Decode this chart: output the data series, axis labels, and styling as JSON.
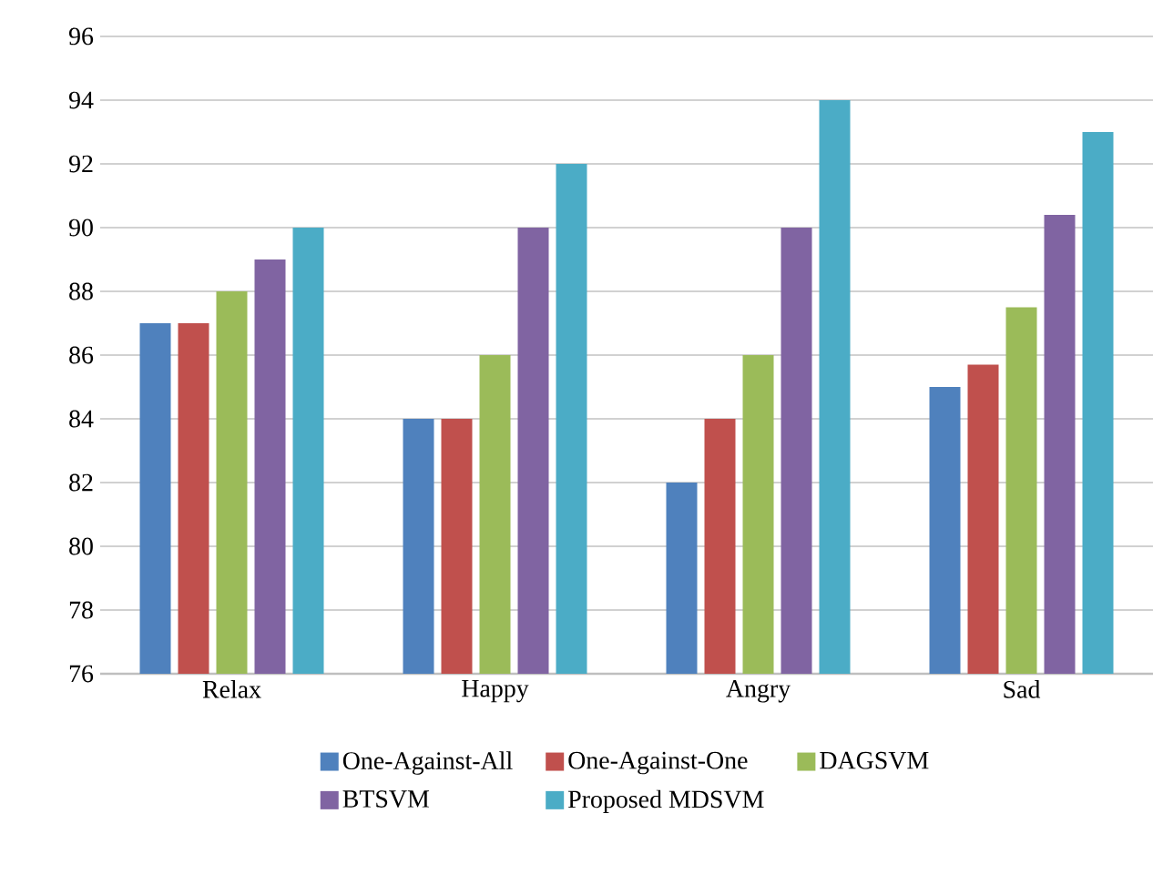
{
  "chart_data": {
    "type": "bar",
    "categories": [
      "Relax",
      "Happy",
      "Angry",
      "Sad"
    ],
    "series": [
      {
        "name": "One-Against-All",
        "color": "#4f81bd",
        "values": [
          87,
          84,
          82,
          85
        ]
      },
      {
        "name": "One-Against-One",
        "color": "#c0504d",
        "values": [
          87,
          84,
          84,
          85.7
        ]
      },
      {
        "name": "DAGSVM",
        "color": "#9bbb59",
        "values": [
          88,
          86,
          86,
          87.5
        ]
      },
      {
        "name": "BTSVM",
        "color": "#8064a2",
        "values": [
          89,
          90,
          90,
          90.4
        ]
      },
      {
        "name": "Proposed MDSVM",
        "color": "#4bacc6",
        "values": [
          90,
          92,
          94,
          93
        ]
      }
    ],
    "ylim": [
      76,
      96
    ],
    "yticks": [
      76,
      78,
      80,
      82,
      84,
      86,
      88,
      90,
      92,
      94,
      96
    ],
    "grid": "y",
    "legend": "bottom"
  }
}
